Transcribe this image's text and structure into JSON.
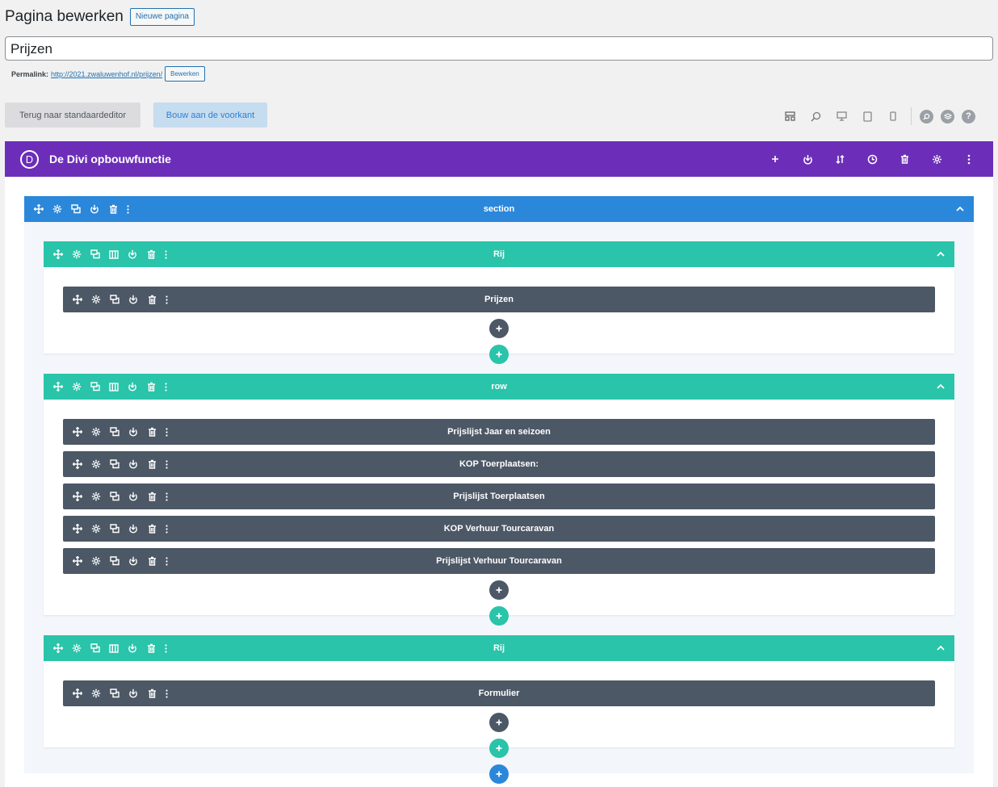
{
  "header": {
    "title": "Pagina bewerken",
    "new_page_label": "Nieuwe pagina"
  },
  "post_title": {
    "value": "Prijzen"
  },
  "permalink": {
    "label": "Permalink:",
    "url_base": "http://2021.zwaluwenhof.nl/",
    "slug": "prijzen",
    "url_tail": "/",
    "edit_label": "Bewerken"
  },
  "editor_buttons": {
    "standard_editor": "Terug naar standaardeditor",
    "front_end": "Bouw aan de voorkant"
  },
  "divi": {
    "logo_letter": "D",
    "title": "De Divi opbouwfunctie",
    "bar_color": "#6c2eb9"
  },
  "colors": {
    "section": "#2b87da",
    "row": "#29c4a9",
    "module": "#4c5866"
  },
  "section": {
    "title": "section"
  },
  "rows": [
    {
      "title": "Rij",
      "modules": [
        {
          "title": "Prijzen"
        }
      ]
    },
    {
      "title": "row",
      "modules": [
        {
          "title": "Prijslijst Jaar en seizoen"
        },
        {
          "title": "KOP Toerplaatsen:"
        },
        {
          "title": "Prijslijst Toerplaatsen"
        },
        {
          "title": "KOP Verhuur Tourcaravan"
        },
        {
          "title": "Prijslijst Verhuur Tourcaravan"
        }
      ]
    },
    {
      "title": "Rij",
      "modules": [
        {
          "title": "Formulier"
        }
      ]
    }
  ]
}
